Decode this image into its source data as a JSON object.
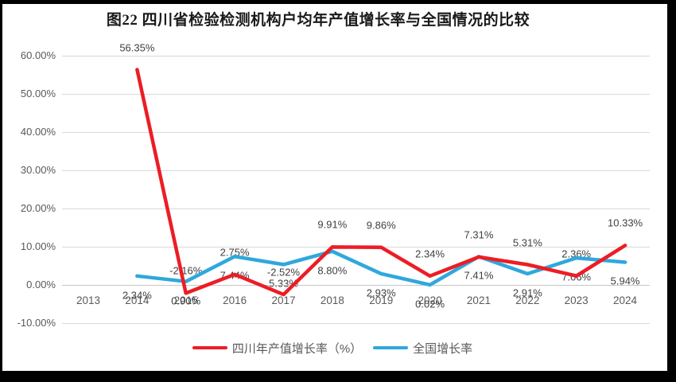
{
  "title": "图22  四川省检验检测机构户均年产值增长率与全国情况的比较",
  "chart_data": {
    "type": "line",
    "title": "图22  四川省检验检测机构户均年产值增长率与全国情况的比较",
    "categories": [
      "2013",
      "2014",
      "2015",
      "2016",
      "2017",
      "2018",
      "2019",
      "2020",
      "2021",
      "2022",
      "2023",
      "2024"
    ],
    "series": [
      {
        "name": "四川年产值增长率（%）",
        "color": "#ec1d25",
        "label_position": "above",
        "values": [
          null,
          56.35,
          -2.16,
          2.75,
          -2.52,
          9.91,
          9.86,
          2.34,
          7.31,
          5.31,
          2.36,
          10.33
        ],
        "point_labels": [
          "",
          "56.35%",
          "-2.16%",
          "2.75%",
          "-2.52%",
          "9.91%",
          "9.86%",
          "2.34%",
          "7.31%",
          "5.31%",
          "2.36%",
          "10.33%"
        ]
      },
      {
        "name": "全国增长率",
        "color": "#2fa8dc",
        "label_position": "below",
        "values": [
          null,
          2.34,
          0.9,
          7.44,
          5.33,
          8.8,
          2.93,
          0.02,
          7.41,
          2.91,
          7.06,
          5.94
        ],
        "point_labels": [
          "",
          "2.34%",
          "0.90%",
          "7.44%",
          "5.33%",
          "8.80%",
          "2.93%",
          "0.02%",
          "7.41%",
          "2.91%",
          "7.06%",
          "5.94%"
        ]
      }
    ],
    "xlabel": "",
    "ylabel": "",
    "ylim": [
      -10,
      60
    ],
    "yticks": [
      {
        "value": 60,
        "label": "60.00%"
      },
      {
        "value": 50,
        "label": "50.00%"
      },
      {
        "value": 40,
        "label": "40.00%"
      },
      {
        "value": 30,
        "label": "30.00%"
      },
      {
        "value": 20,
        "label": "20.00%"
      },
      {
        "value": 10,
        "label": "10.00%"
      },
      {
        "value": 0,
        "label": "0.00%"
      },
      {
        "value": -10,
        "label": "-10.00%"
      }
    ],
    "grid": true,
    "legend_position": "bottom",
    "colors": {
      "gridline": "#d9d9d9",
      "zero_line": "#c6c6c6",
      "axis_text": "#595959",
      "data_label_text": "#3f3f3f",
      "title_text": "#1a1a1a",
      "frame": "#000000",
      "background": "#ffffff"
    }
  }
}
